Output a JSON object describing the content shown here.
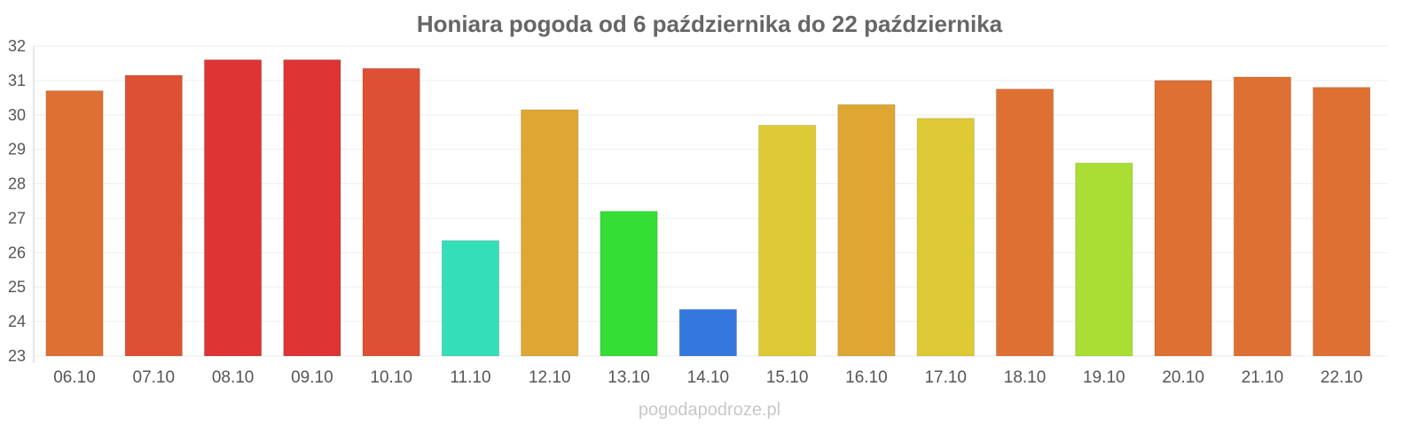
{
  "chart_data": {
    "type": "bar",
    "title": "Honiara pogoda od 6 października do 22 października",
    "xlabel": "",
    "ylabel": "",
    "ylim": [
      23,
      32
    ],
    "yticks": [
      "23",
      "24",
      "25",
      "26",
      "27",
      "28",
      "29",
      "30",
      "31",
      "32"
    ],
    "grid": true,
    "categories": [
      "06.10",
      "07.10",
      "08.10",
      "09.10",
      "10.10",
      "11.10",
      "12.10",
      "13.10",
      "14.10",
      "15.10",
      "16.10",
      "17.10",
      "18.10",
      "19.10",
      "20.10",
      "21.10",
      "22.10"
    ],
    "values": [
      30.7,
      31.15,
      31.6,
      31.6,
      31.35,
      26.35,
      30.15,
      27.2,
      24.35,
      29.7,
      30.3,
      29.9,
      30.75,
      28.6,
      31.0,
      31.1,
      30.8
    ],
    "colors": [
      "#DE7034",
      "#DE5034",
      "#DE3434",
      "#DE3434",
      "#DE5034",
      "#34DEB8",
      "#DEA734",
      "#34DE34",
      "#3478DE",
      "#DECA34",
      "#DEA734",
      "#DECA34",
      "#DE7034",
      "#AADE34",
      "#DE7034",
      "#DE7034",
      "#DE7034"
    ]
  },
  "watermark": "pogodapodroze.pl"
}
